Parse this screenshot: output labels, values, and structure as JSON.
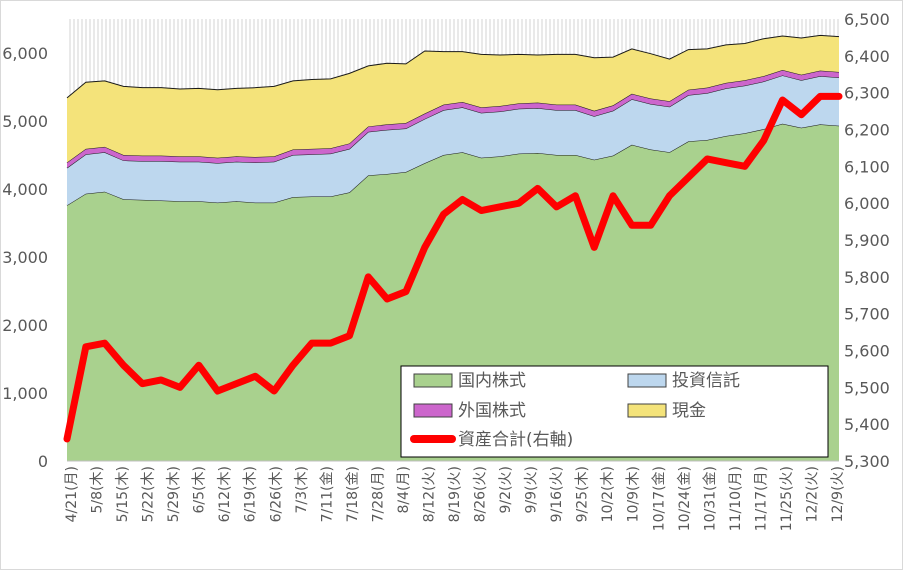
{
  "chart_data": {
    "type": "area",
    "stacked": true,
    "x_tick_labels": [
      "4/21(月)",
      "5/8(木)",
      "5/15(木)",
      "5/22(木)",
      "5/29(木)",
      "6/5(木)",
      "6/12(木)",
      "6/19(木)",
      "6/26(木)",
      "7/3(木)",
      "7/11(金)",
      "7/18(金)",
      "7/28(月)",
      "8/4(月)",
      "8/12(火)",
      "8/19(火)",
      "8/26(火)",
      "9/2(火)",
      "9/9(火)",
      "9/16(火)",
      "9/25(木)",
      "10/2(木)",
      "10/9(木)",
      "10/17(金)",
      "10/24(金)",
      "10/31(金)",
      "11/10(月)",
      "11/17(月)",
      "11/25(火)",
      "12/2(火)",
      "12/9(火)"
    ],
    "y_left": {
      "min": 0,
      "max": 6500,
      "ticks": [
        "0",
        "1,000",
        "2,000",
        "3,000",
        "4,000",
        "5,000",
        "6,000"
      ]
    },
    "y_right": {
      "min": 5300,
      "max": 6500,
      "ticks": [
        "5,300",
        "5,400",
        "5,500",
        "5,600",
        "5,700",
        "5,800",
        "5,900",
        "6,000",
        "6,100",
        "6,200",
        "6,300",
        "6,400",
        "6,500"
      ]
    },
    "grid": false,
    "legend_position": "bottom-right (inside plot)",
    "series": [
      {
        "name": "国内株式",
        "color": "#a9d18e",
        "axis": "left",
        "values": [
          3760,
          3930,
          3960,
          3850,
          3840,
          3830,
          3820,
          3820,
          3800,
          3820,
          3800,
          3800,
          3880,
          3890,
          3890,
          3950,
          4200,
          4220,
          4250,
          4380,
          4500,
          4540,
          4460,
          4480,
          4520,
          4530,
          4500,
          4500,
          4430,
          4490,
          4650,
          4580,
          4540,
          4700,
          4720,
          4780,
          4820,
          4880,
          4960,
          4900,
          4950,
          4930
        ]
      },
      {
        "name": "投資信託",
        "color": "#bdd7ee",
        "axis": "left",
        "values": [
          550,
          580,
          580,
          570,
          570,
          580,
          580,
          580,
          580,
          580,
          590,
          600,
          620,
          620,
          630,
          640,
          640,
          650,
          640,
          650,
          660,
          660,
          660,
          660,
          660,
          660,
          660,
          660,
          640,
          660,
          670,
          670,
          670,
          680,
          690,
          700,
          700,
          700,
          710,
          700,
          710,
          710
        ]
      },
      {
        "name": "外国株式",
        "color": "#cc66cc",
        "axis": "left",
        "values": [
          80,
          80,
          80,
          80,
          80,
          80,
          80,
          80,
          80,
          80,
          80,
          80,
          80,
          80,
          80,
          80,
          80,
          80,
          80,
          80,
          80,
          80,
          80,
          80,
          80,
          80,
          80,
          80,
          80,
          80,
          80,
          80,
          80,
          80,
          80,
          80,
          80,
          80,
          80,
          80,
          80,
          80
        ]
      },
      {
        "name": "現金",
        "color": "#f4e37a",
        "axis": "left",
        "values": [
          950,
          980,
          970,
          1010,
          1000,
          1000,
          990,
          1000,
          1000,
          1000,
          1020,
          1030,
          1010,
          1020,
          1020,
          1030,
          890,
          900,
          870,
          920,
          780,
          740,
          780,
          750,
          720,
          700,
          740,
          740,
          780,
          710,
          660,
          660,
          620,
          590,
          570,
          560,
          540,
          550,
          500,
          540,
          520,
          520
        ]
      },
      {
        "name": "資産合計(右軸)",
        "color": "#ff0000",
        "axis": "right",
        "style": "line",
        "values": [
          5360,
          5610,
          5620,
          5560,
          5510,
          5520,
          5500,
          5560,
          5490,
          5510,
          5530,
          5490,
          5560,
          5620,
          5620,
          5640,
          5800,
          5740,
          5760,
          5880,
          5970,
          6010,
          5980,
          5990,
          6000,
          6040,
          5990,
          6020,
          5880,
          6020,
          5940,
          5940,
          6020,
          6070,
          6120,
          6110,
          6100,
          6170,
          6280,
          6240,
          6290,
          6290
        ]
      }
    ]
  }
}
